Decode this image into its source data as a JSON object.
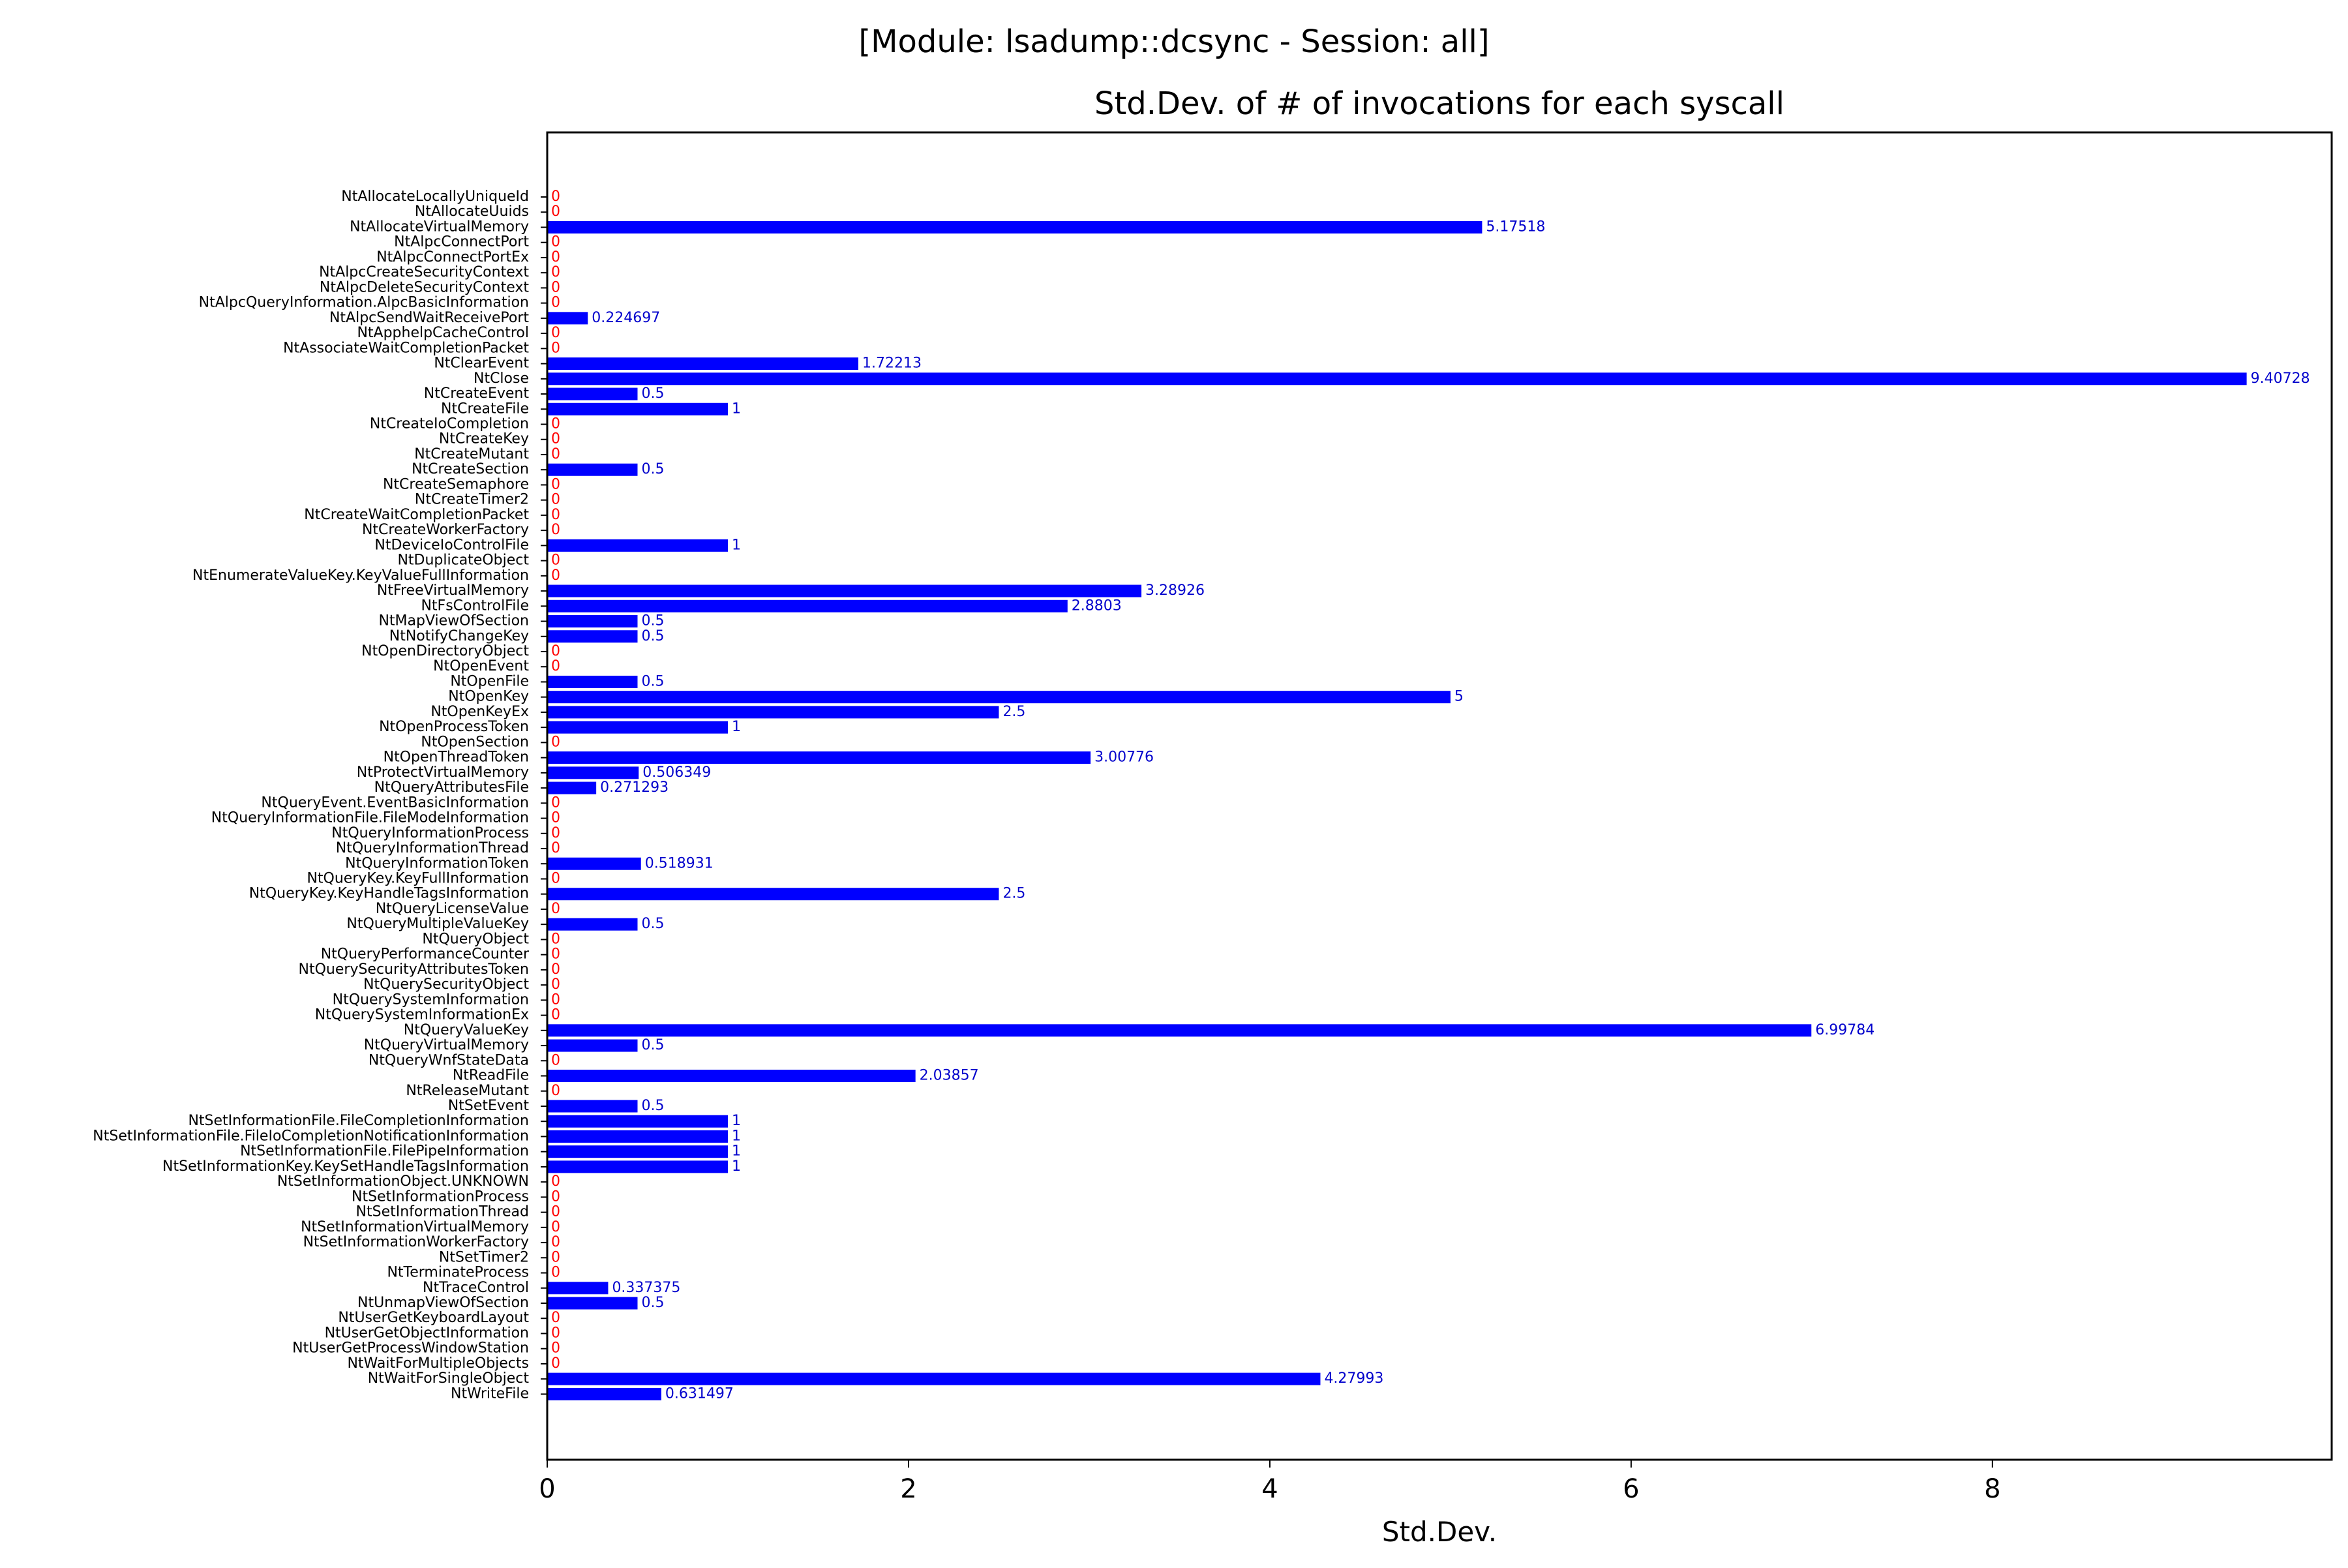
{
  "figure": {
    "suptitle": "[Module: lsadump::dcsync - Session: all]"
  },
  "chart_data": {
    "type": "bar",
    "orientation": "horizontal",
    "title": "Std.Dev. of # of invocations for each syscall",
    "xlabel": "Std.Dev.",
    "ylabel": "",
    "xlim": [
      0,
      9.878
    ],
    "xticks": [
      0,
      2,
      4,
      6,
      8
    ],
    "grid": false,
    "colors": {
      "bar": "#0000ff",
      "nonzero_label": "#0000cc",
      "zero_label": "#ff0000",
      "axis": "#000000"
    },
    "categories": [
      "NtAllocateLocallyUniqueId",
      "NtAllocateUuids",
      "NtAllocateVirtualMemory",
      "NtAlpcConnectPort",
      "NtAlpcConnectPortEx",
      "NtAlpcCreateSecurityContext",
      "NtAlpcDeleteSecurityContext",
      "NtAlpcQueryInformation.AlpcBasicInformation",
      "NtAlpcSendWaitReceivePort",
      "NtApphelpCacheControl",
      "NtAssociateWaitCompletionPacket",
      "NtClearEvent",
      "NtClose",
      "NtCreateEvent",
      "NtCreateFile",
      "NtCreateIoCompletion",
      "NtCreateKey",
      "NtCreateMutant",
      "NtCreateSection",
      "NtCreateSemaphore",
      "NtCreateTimer2",
      "NtCreateWaitCompletionPacket",
      "NtCreateWorkerFactory",
      "NtDeviceIoControlFile",
      "NtDuplicateObject",
      "NtEnumerateValueKey.KeyValueFullInformation",
      "NtFreeVirtualMemory",
      "NtFsControlFile",
      "NtMapViewOfSection",
      "NtNotifyChangeKey",
      "NtOpenDirectoryObject",
      "NtOpenEvent",
      "NtOpenFile",
      "NtOpenKey",
      "NtOpenKeyEx",
      "NtOpenProcessToken",
      "NtOpenSection",
      "NtOpenThreadToken",
      "NtProtectVirtualMemory",
      "NtQueryAttributesFile",
      "NtQueryEvent.EventBasicInformation",
      "NtQueryInformationFile.FileModeInformation",
      "NtQueryInformationProcess",
      "NtQueryInformationThread",
      "NtQueryInformationToken",
      "NtQueryKey.KeyFullInformation",
      "NtQueryKey.KeyHandleTagsInformation",
      "NtQueryLicenseValue",
      "NtQueryMultipleValueKey",
      "NtQueryObject",
      "NtQueryPerformanceCounter",
      "NtQuerySecurityAttributesToken",
      "NtQuerySecurityObject",
      "NtQuerySystemInformation",
      "NtQuerySystemInformationEx",
      "NtQueryValueKey",
      "NtQueryVirtualMemory",
      "NtQueryWnfStateData",
      "NtReadFile",
      "NtReleaseMutant",
      "NtSetEvent",
      "NtSetInformationFile.FileCompletionInformation",
      "NtSetInformationFile.FileIoCompletionNotificationInformation",
      "NtSetInformationFile.FilePipeInformation",
      "NtSetInformationKey.KeySetHandleTagsInformation",
      "NtSetInformationObject.UNKNOWN",
      "NtSetInformationProcess",
      "NtSetInformationThread",
      "NtSetInformationVirtualMemory",
      "NtSetInformationWorkerFactory",
      "NtSetTimer2",
      "NtTerminateProcess",
      "NtTraceControl",
      "NtUnmapViewOfSection",
      "NtUserGetKeyboardLayout",
      "NtUserGetObjectInformation",
      "NtUserGetProcessWindowStation",
      "NtWaitForMultipleObjects",
      "NtWaitForSingleObject",
      "NtWriteFile"
    ],
    "values": [
      0,
      0,
      5.17518,
      0,
      0,
      0,
      0,
      0,
      0.224697,
      0,
      0,
      1.72213,
      9.40728,
      0.5,
      1,
      0,
      0,
      0,
      0.5,
      0,
      0,
      0,
      0,
      1,
      0,
      0,
      3.28926,
      2.8803,
      0.5,
      0.5,
      0,
      0,
      0.5,
      5,
      2.5,
      1,
      0,
      3.00776,
      0.506349,
      0.271293,
      0,
      0,
      0,
      0,
      0.518931,
      0,
      2.5,
      0,
      0.5,
      0,
      0,
      0,
      0,
      0,
      0,
      6.99784,
      0.5,
      0,
      2.03857,
      0,
      0.5,
      1,
      1,
      1,
      1,
      0,
      0,
      0,
      0,
      0,
      0,
      0,
      0.337375,
      0.5,
      0,
      0,
      0,
      0,
      4.27993,
      0.631497
    ],
    "value_labels": [
      "0",
      "0",
      "5.17518",
      "0",
      "0",
      "0",
      "0",
      "0",
      "0.224697",
      "0",
      "0",
      "1.72213",
      "9.40728",
      "0.5",
      "1",
      "0",
      "0",
      "0",
      "0.5",
      "0",
      "0",
      "0",
      "0",
      "1",
      "0",
      "0",
      "3.28926",
      "2.8803",
      "0.5",
      "0.5",
      "0",
      "0",
      "0.5",
      "5",
      "2.5",
      "1",
      "0",
      "3.00776",
      "0.506349",
      "0.271293",
      "0",
      "0",
      "0",
      "0",
      "0.518931",
      "0",
      "2.5",
      "0",
      "0.5",
      "0",
      "0",
      "0",
      "0",
      "0",
      "0",
      "6.99784",
      "0.5",
      "0",
      "2.03857",
      "0",
      "0.5",
      "1",
      "1",
      "1",
      "1",
      "0",
      "0",
      "0",
      "0",
      "0",
      "0",
      "0",
      "0.337375",
      "0.5",
      "0",
      "0",
      "0",
      "0",
      "4.27993",
      "0.631497"
    ]
  }
}
